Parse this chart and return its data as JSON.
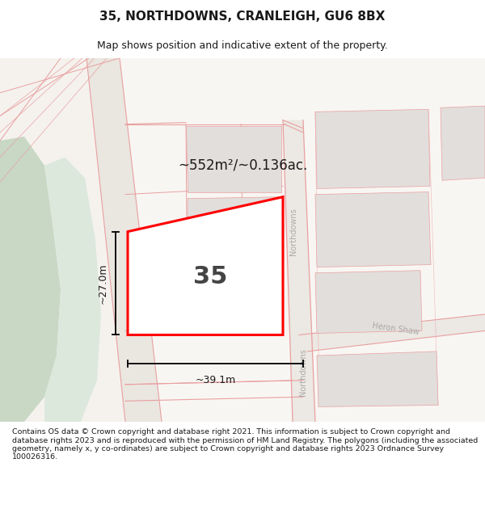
{
  "title": "35, NORTHDOWNS, CRANLEIGH, GU6 8BX",
  "subtitle": "Map shows position and indicative extent of the property.",
  "footer": "Contains OS data © Crown copyright and database right 2021. This information is subject to Crown copyright and database rights 2023 and is reproduced with the permission of HM Land Registry. The polygons (including the associated geometry, namely x, y co-ordinates) are subject to Crown copyright and database rights 2023 Ordnance Survey 100026316.",
  "area_label": "~552m²/~0.136ac.",
  "plot_number": "35",
  "width_label": "~39.1m",
  "height_label": "~27.0m",
  "road_color": "#e8a0a0",
  "plot_fill": "#ffffff",
  "plot_edge": "#ff0000",
  "green_dark": "#c8d8c5",
  "green_light": "#dce8dc",
  "map_bg": "#f5f2ee",
  "block_fill": "#e2dedb",
  "text_color": "#1a1a1a",
  "road_text_color": "#aaaaaa",
  "footer_fontsize": 6.8,
  "title_fontsize": 11,
  "subtitle_fontsize": 9
}
